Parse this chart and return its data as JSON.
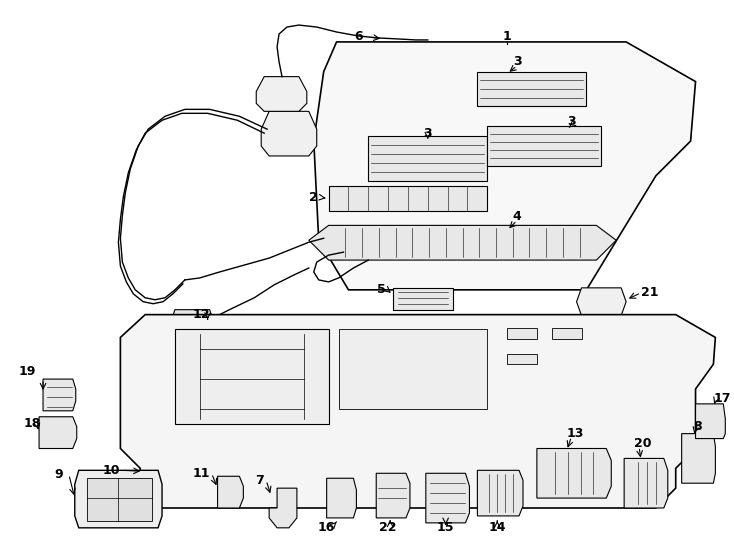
{
  "background_color": "#ffffff",
  "line_color": "#000000",
  "figsize": [
    7.34,
    5.4
  ],
  "dpi": 100
}
